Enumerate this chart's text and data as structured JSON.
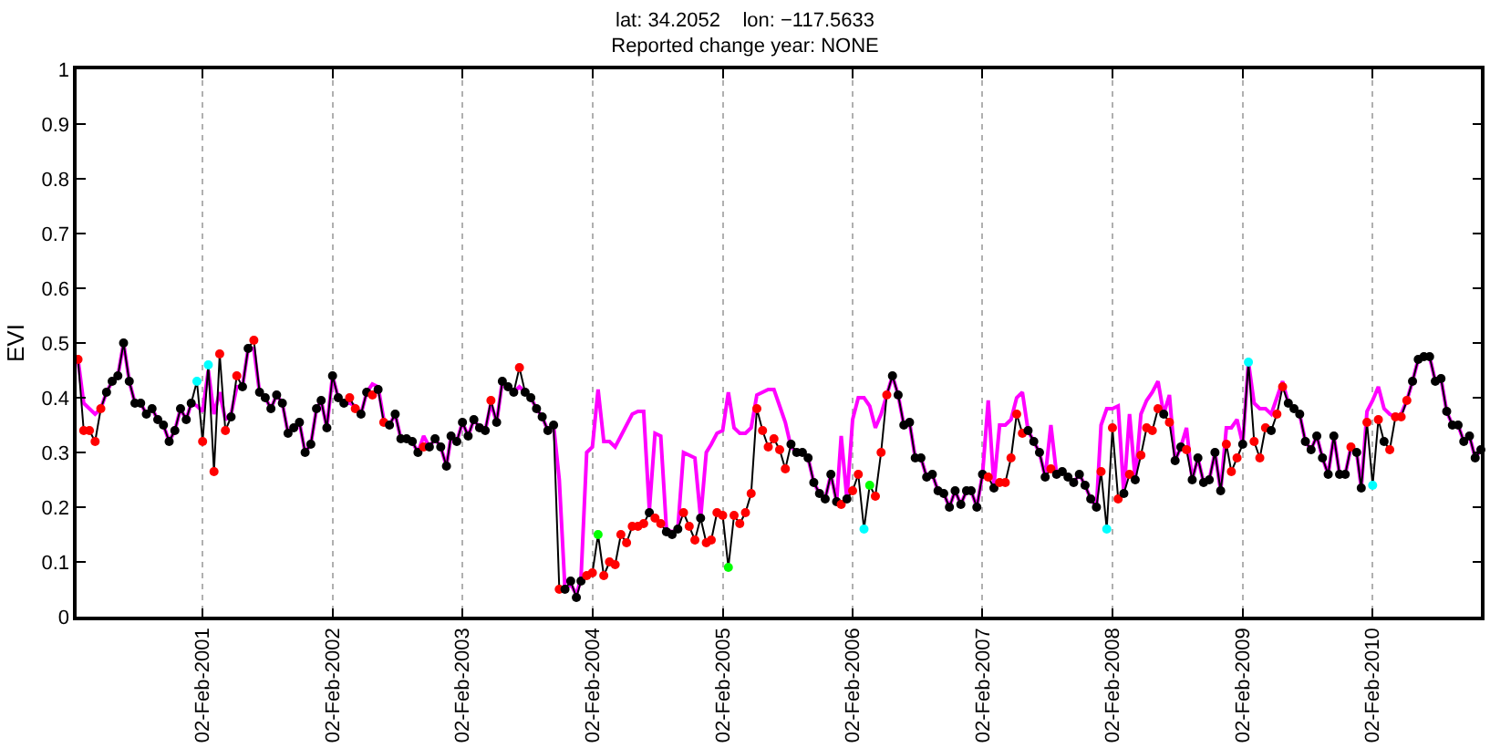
{
  "chart_data": {
    "type": "line",
    "title": "lat: 34.2052    lon: −117.5633\nReported change year: NONE",
    "ylabel": "EVI",
    "xlim": [
      "2000-02-14",
      "2010-12-03"
    ],
    "ylim": [
      0,
      1
    ],
    "yticks": [
      0,
      0.1,
      0.2,
      0.3,
      0.4,
      0.5,
      0.6,
      0.7,
      0.8,
      0.9,
      1
    ],
    "xticks": [
      {
        "value": "2001-02-02",
        "label": "02-Feb-2001"
      },
      {
        "value": "2002-02-02",
        "label": "02-Feb-2002"
      },
      {
        "value": "2003-02-02",
        "label": "02-Feb-2003"
      },
      {
        "value": "2004-02-02",
        "label": "02-Feb-2004"
      },
      {
        "value": "2005-02-02",
        "label": "02-Feb-2005"
      },
      {
        "value": "2006-02-02",
        "label": "02-Feb-2006"
      },
      {
        "value": "2007-02-02",
        "label": "02-Feb-2007"
      },
      {
        "value": "2008-02-02",
        "label": "02-Feb-2008"
      },
      {
        "value": "2009-02-02",
        "label": "02-Feb-2009"
      },
      {
        "value": "2010-02-02",
        "label": "02-Feb-2010"
      }
    ],
    "grid": "x",
    "x": [
      "2000-02-18",
      "2000-03-05",
      "2000-03-21",
      "2000-04-06",
      "2000-04-22",
      "2000-05-08",
      "2000-05-24",
      "2000-06-09",
      "2000-06-25",
      "2000-07-11",
      "2000-07-27",
      "2000-08-12",
      "2000-08-28",
      "2000-09-13",
      "2000-09-29",
      "2000-10-15",
      "2000-10-31",
      "2000-11-16",
      "2000-12-02",
      "2000-12-18",
      "2001-01-01",
      "2001-01-17",
      "2001-02-02",
      "2001-02-18",
      "2001-03-06",
      "2001-03-22",
      "2001-04-07",
      "2001-04-23",
      "2001-05-09",
      "2001-05-25",
      "2001-06-10",
      "2001-06-26",
      "2001-07-12",
      "2001-07-28",
      "2001-08-13",
      "2001-08-29",
      "2001-09-14",
      "2001-09-30",
      "2001-10-16",
      "2001-11-01",
      "2001-11-17",
      "2001-12-03",
      "2001-12-19",
      "2002-01-01",
      "2002-01-17",
      "2002-02-02",
      "2002-02-18",
      "2002-03-06",
      "2002-03-22",
      "2002-04-07",
      "2002-04-23",
      "2002-05-09",
      "2002-05-25",
      "2002-06-10",
      "2002-06-26",
      "2002-07-12",
      "2002-07-28",
      "2002-08-13",
      "2002-08-29",
      "2002-09-14",
      "2002-09-30",
      "2002-10-16",
      "2002-11-01",
      "2002-11-17",
      "2002-12-03",
      "2002-12-19",
      "2003-01-01",
      "2003-01-17",
      "2003-02-02",
      "2003-02-18",
      "2003-03-06",
      "2003-03-22",
      "2003-04-07",
      "2003-04-23",
      "2003-05-09",
      "2003-05-25",
      "2003-06-10",
      "2003-06-26",
      "2003-07-12",
      "2003-07-28",
      "2003-08-13",
      "2003-08-29",
      "2003-09-14",
      "2003-09-30",
      "2003-10-16",
      "2003-11-01",
      "2003-11-17",
      "2003-12-03",
      "2003-12-19",
      "2004-01-01",
      "2004-01-17",
      "2004-02-02",
      "2004-02-18",
      "2004-03-05",
      "2004-03-21",
      "2004-04-06",
      "2004-04-22",
      "2004-05-08",
      "2004-05-24",
      "2004-06-09",
      "2004-06-25",
      "2004-07-11",
      "2004-07-27",
      "2004-08-12",
      "2004-08-28",
      "2004-09-13",
      "2004-09-29",
      "2004-10-15",
      "2004-10-31",
      "2004-11-16",
      "2004-12-02",
      "2004-12-18",
      "2005-01-01",
      "2005-01-17",
      "2005-02-02",
      "2005-02-18",
      "2005-03-06",
      "2005-03-22",
      "2005-04-07",
      "2005-04-23",
      "2005-05-09",
      "2005-05-25",
      "2005-06-10",
      "2005-06-26",
      "2005-07-12",
      "2005-07-28",
      "2005-08-13",
      "2005-08-29",
      "2005-09-14",
      "2005-09-30",
      "2005-10-16",
      "2005-11-01",
      "2005-11-17",
      "2005-12-03",
      "2005-12-19",
      "2006-01-01",
      "2006-01-17",
      "2006-02-02",
      "2006-02-18",
      "2006-03-06",
      "2006-03-22",
      "2006-04-07",
      "2006-04-23",
      "2006-05-09",
      "2006-05-25",
      "2006-06-10",
      "2006-06-26",
      "2006-07-12",
      "2006-07-28",
      "2006-08-13",
      "2006-08-29",
      "2006-09-14",
      "2006-09-30",
      "2006-10-16",
      "2006-11-01",
      "2006-11-17",
      "2006-12-03",
      "2006-12-19",
      "2007-01-01",
      "2007-01-17",
      "2007-02-02",
      "2007-02-18",
      "2007-03-06",
      "2007-03-22",
      "2007-04-07",
      "2007-04-23",
      "2007-05-09",
      "2007-05-25",
      "2007-06-10",
      "2007-06-26",
      "2007-07-12",
      "2007-07-28",
      "2007-08-13",
      "2007-08-29",
      "2007-09-14",
      "2007-09-30",
      "2007-10-16",
      "2007-11-01",
      "2007-11-17",
      "2007-12-03",
      "2007-12-19",
      "2008-01-01",
      "2008-01-17",
      "2008-02-02",
      "2008-02-18",
      "2008-03-05",
      "2008-03-21",
      "2008-04-06",
      "2008-04-22",
      "2008-05-08",
      "2008-05-24",
      "2008-06-09",
      "2008-06-25",
      "2008-07-11",
      "2008-07-27",
      "2008-08-12",
      "2008-08-28",
      "2008-09-13",
      "2008-09-29",
      "2008-10-15",
      "2008-10-31",
      "2008-11-16",
      "2008-12-02",
      "2008-12-18",
      "2009-01-01",
      "2009-01-17",
      "2009-02-02",
      "2009-02-18",
      "2009-03-06",
      "2009-03-22",
      "2009-04-07",
      "2009-04-23",
      "2009-05-09",
      "2009-05-25",
      "2009-06-10",
      "2009-06-26",
      "2009-07-12",
      "2009-07-28",
      "2009-08-13",
      "2009-08-29",
      "2009-09-14",
      "2009-09-30",
      "2009-10-16",
      "2009-11-01",
      "2009-11-17",
      "2009-12-03",
      "2009-12-19",
      "2010-01-01",
      "2010-01-17",
      "2010-02-02",
      "2010-02-18",
      "2010-03-06",
      "2010-03-22",
      "2010-04-07",
      "2010-04-23",
      "2010-05-09",
      "2010-05-25",
      "2010-06-10",
      "2010-06-26",
      "2010-07-12",
      "2010-07-28",
      "2010-08-13",
      "2010-08-29",
      "2010-09-14",
      "2010-09-30",
      "2010-10-16",
      "2010-11-01",
      "2010-11-17",
      "2010-12-03"
    ],
    "series": [
      {
        "color": "#ff00ff",
        "marker": "none",
        "line_style": "solid",
        "values": [
          0.47,
          0.39,
          0.38,
          0.37,
          0.38,
          0.41,
          0.43,
          0.44,
          0.5,
          0.43,
          0.39,
          0.39,
          0.37,
          0.38,
          0.36,
          0.35,
          0.32,
          0.34,
          0.38,
          0.36,
          0.39,
          0.385,
          0.375,
          0.45,
          0.37,
          0.41,
          0.36,
          0.37,
          0.42,
          0.42,
          0.49,
          0.49,
          0.41,
          0.4,
          0.38,
          0.405,
          0.39,
          0.335,
          0.345,
          0.355,
          0.3,
          0.315,
          0.38,
          0.395,
          0.345,
          0.44,
          0.4,
          0.39,
          0.39,
          0.385,
          0.37,
          0.41,
          0.425,
          0.42,
          0.36,
          0.35,
          0.37,
          0.325,
          0.325,
          0.32,
          0.3,
          0.33,
          0.31,
          0.325,
          0.31,
          0.275,
          0.33,
          0.32,
          0.355,
          0.33,
          0.36,
          0.345,
          0.34,
          0.39,
          0.355,
          0.43,
          0.42,
          0.41,
          0.42,
          0.41,
          0.4,
          0.38,
          0.365,
          0.34,
          0.35,
          0.25,
          0.05,
          0.06,
          0.04,
          0.07,
          0.3,
          0.31,
          0.415,
          0.32,
          0.32,
          0.31,
          0.33,
          0.35,
          0.37,
          0.375,
          0.375,
          0.195,
          0.335,
          0.33,
          0.16,
          0.155,
          0.16,
          0.3,
          0.295,
          0.29,
          0.18,
          0.3,
          0.315,
          0.335,
          0.34,
          0.41,
          0.345,
          0.335,
          0.335,
          0.345,
          0.405,
          0.41,
          0.415,
          0.415,
          0.385,
          0.355,
          0.31,
          0.3,
          0.3,
          0.29,
          0.245,
          0.225,
          0.215,
          0.26,
          0.21,
          0.33,
          0.215,
          0.36,
          0.4,
          0.4,
          0.385,
          0.345,
          0.37,
          0.405,
          0.44,
          0.405,
          0.35,
          0.355,
          0.29,
          0.29,
          0.255,
          0.26,
          0.23,
          0.225,
          0.2,
          0.23,
          0.205,
          0.23,
          0.23,
          0.2,
          0.26,
          0.395,
          0.24,
          0.35,
          0.35,
          0.36,
          0.4,
          0.41,
          0.34,
          0.32,
          0.3,
          0.255,
          0.35,
          0.26,
          0.265,
          0.255,
          0.245,
          0.26,
          0.24,
          0.215,
          0.2,
          0.35,
          0.38,
          0.38,
          0.385,
          0.225,
          0.37,
          0.25,
          0.37,
          0.395,
          0.41,
          0.43,
          0.37,
          0.405,
          0.285,
          0.31,
          0.345,
          0.25,
          0.29,
          0.245,
          0.25,
          0.3,
          0.23,
          0.345,
          0.345,
          0.36,
          0.315,
          0.465,
          0.39,
          0.38,
          0.38,
          0.37,
          0.4,
          0.43,
          0.39,
          0.38,
          0.37,
          0.32,
          0.305,
          0.33,
          0.29,
          0.26,
          0.33,
          0.26,
          0.26,
          0.31,
          0.3,
          0.235,
          0.375,
          0.395,
          0.42,
          0.38,
          0.37,
          0.365,
          0.37,
          0.395,
          0.43,
          0.47,
          0.475,
          0.475,
          0.43,
          0.435,
          0.375,
          0.35,
          0.35,
          0.32,
          0.33,
          0.29,
          0.305
        ]
      },
      {
        "color": "#000000",
        "marker": "circle",
        "line_style": "solid",
        "values": [
          0.47,
          0.34,
          0.34,
          0.32,
          0.38,
          0.41,
          0.43,
          0.44,
          0.5,
          0.43,
          0.39,
          0.39,
          0.37,
          0.38,
          0.36,
          0.35,
          0.32,
          0.34,
          0.38,
          0.36,
          0.39,
          0.43,
          0.32,
          0.46,
          0.265,
          0.48,
          0.34,
          0.365,
          0.44,
          0.42,
          0.49,
          0.505,
          0.41,
          0.4,
          0.38,
          0.405,
          0.39,
          0.335,
          0.345,
          0.355,
          0.3,
          0.315,
          0.38,
          0.395,
          0.345,
          0.44,
          0.4,
          0.39,
          0.4,
          0.38,
          0.37,
          0.41,
          0.405,
          0.415,
          0.355,
          0.35,
          0.37,
          0.325,
          0.325,
          0.32,
          0.3,
          0.31,
          0.31,
          0.325,
          0.31,
          0.275,
          0.33,
          0.32,
          0.355,
          0.33,
          0.36,
          0.345,
          0.34,
          0.395,
          0.355,
          0.43,
          0.42,
          0.41,
          0.455,
          0.41,
          0.4,
          0.38,
          0.365,
          0.34,
          0.35,
          0.05,
          0.05,
          0.065,
          0.035,
          0.065,
          0.075,
          0.08,
          0.15,
          0.075,
          0.1,
          0.095,
          0.15,
          0.135,
          0.165,
          0.165,
          0.17,
          0.19,
          0.18,
          0.17,
          0.155,
          0.15,
          0.16,
          0.19,
          0.165,
          0.14,
          0.18,
          0.135,
          0.14,
          0.19,
          0.185,
          0.09,
          0.185,
          0.17,
          0.19,
          0.225,
          0.38,
          0.34,
          0.31,
          0.325,
          0.305,
          0.27,
          0.315,
          0.3,
          0.3,
          0.29,
          0.245,
          0.225,
          0.215,
          0.26,
          0.21,
          0.205,
          0.215,
          0.23,
          0.26,
          0.16,
          0.24,
          0.22,
          0.3,
          0.405,
          0.44,
          0.405,
          0.35,
          0.355,
          0.29,
          0.29,
          0.255,
          0.26,
          0.23,
          0.225,
          0.2,
          0.23,
          0.205,
          0.23,
          0.23,
          0.2,
          0.26,
          0.255,
          0.235,
          0.245,
          0.245,
          0.29,
          0.37,
          0.335,
          0.34,
          0.32,
          0.3,
          0.255,
          0.27,
          0.26,
          0.265,
          0.255,
          0.245,
          0.26,
          0.24,
          0.215,
          0.2,
          0.265,
          0.16,
          0.345,
          0.215,
          0.225,
          0.26,
          0.25,
          0.295,
          0.345,
          0.34,
          0.38,
          0.37,
          0.355,
          0.285,
          0.31,
          0.305,
          0.25,
          0.29,
          0.245,
          0.25,
          0.3,
          0.23,
          0.315,
          0.265,
          0.29,
          0.315,
          0.465,
          0.32,
          0.29,
          0.345,
          0.34,
          0.37,
          0.42,
          0.39,
          0.38,
          0.37,
          0.32,
          0.305,
          0.33,
          0.29,
          0.26,
          0.33,
          0.26,
          0.26,
          0.31,
          0.3,
          0.235,
          0.355,
          0.24,
          0.36,
          0.32,
          0.305,
          0.365,
          0.365,
          0.395,
          0.43,
          0.47,
          0.475,
          0.475,
          0.43,
          0.435,
          0.375,
          0.35,
          0.35,
          0.32,
          0.33,
          0.29,
          0.305
        ],
        "colors": [
          "#ff0000",
          "#ff0000",
          "#ff0000",
          "#ff0000",
          "#ff0000",
          "#000000",
          "#000000",
          "#000000",
          "#000000",
          "#000000",
          "#000000",
          "#000000",
          "#000000",
          "#000000",
          "#000000",
          "#000000",
          "#000000",
          "#000000",
          "#000000",
          "#000000",
          "#000000",
          "#00ffff",
          "#ff0000",
          "#00ffff",
          "#ff0000",
          "#ff0000",
          "#ff0000",
          "#000000",
          "#ff0000",
          "#000000",
          "#000000",
          "#ff0000",
          "#000000",
          "#000000",
          "#000000",
          "#000000",
          "#000000",
          "#000000",
          "#000000",
          "#000000",
          "#000000",
          "#000000",
          "#000000",
          "#000000",
          "#000000",
          "#000000",
          "#000000",
          "#000000",
          "#ff0000",
          "#ff0000",
          "#000000",
          "#000000",
          "#ff0000",
          "#000000",
          "#ff0000",
          "#000000",
          "#000000",
          "#000000",
          "#000000",
          "#000000",
          "#000000",
          "#ff0000",
          "#000000",
          "#000000",
          "#000000",
          "#000000",
          "#000000",
          "#000000",
          "#000000",
          "#000000",
          "#000000",
          "#000000",
          "#000000",
          "#ff0000",
          "#000000",
          "#000000",
          "#000000",
          "#000000",
          "#ff0000",
          "#000000",
          "#000000",
          "#000000",
          "#000000",
          "#000000",
          "#000000",
          "#ff0000",
          "#000000",
          "#000000",
          "#000000",
          "#000000",
          "#ff0000",
          "#ff0000",
          "#00ff00",
          "#ff0000",
          "#ff0000",
          "#ff0000",
          "#ff0000",
          "#ff0000",
          "#ff0000",
          "#ff0000",
          "#ff0000",
          "#000000",
          "#ff0000",
          "#ff0000",
          "#000000",
          "#000000",
          "#000000",
          "#ff0000",
          "#ff0000",
          "#ff0000",
          "#000000",
          "#ff0000",
          "#ff0000",
          "#ff0000",
          "#ff0000",
          "#00ff00",
          "#ff0000",
          "#ff0000",
          "#ff0000",
          "#ff0000",
          "#ff0000",
          "#ff0000",
          "#ff0000",
          "#ff0000",
          "#ff0000",
          "#ff0000",
          "#000000",
          "#000000",
          "#000000",
          "#000000",
          "#000000",
          "#000000",
          "#000000",
          "#000000",
          "#000000",
          "#ff0000",
          "#000000",
          "#ff0000",
          "#ff0000",
          "#00ffff",
          "#00ff00",
          "#ff0000",
          "#ff0000",
          "#ff0000",
          "#000000",
          "#000000",
          "#000000",
          "#000000",
          "#000000",
          "#000000",
          "#000000",
          "#000000",
          "#000000",
          "#000000",
          "#000000",
          "#000000",
          "#000000",
          "#000000",
          "#000000",
          "#000000",
          "#000000",
          "#ff0000",
          "#000000",
          "#ff0000",
          "#ff0000",
          "#ff0000",
          "#ff0000",
          "#ff0000",
          "#000000",
          "#000000",
          "#000000",
          "#000000",
          "#ff0000",
          "#000000",
          "#000000",
          "#000000",
          "#000000",
          "#000000",
          "#000000",
          "#000000",
          "#000000",
          "#ff0000",
          "#00ffff",
          "#ff0000",
          "#ff0000",
          "#000000",
          "#ff0000",
          "#000000",
          "#ff0000",
          "#ff0000",
          "#ff0000",
          "#ff0000",
          "#000000",
          "#ff0000",
          "#000000",
          "#000000",
          "#ff0000",
          "#000000",
          "#000000",
          "#000000",
          "#000000",
          "#000000",
          "#000000",
          "#ff0000",
          "#ff0000",
          "#ff0000",
          "#000000",
          "#00ffff",
          "#ff0000",
          "#ff0000",
          "#ff0000",
          "#000000",
          "#ff0000",
          "#ff0000",
          "#000000",
          "#000000",
          "#000000",
          "#000000",
          "#000000",
          "#000000",
          "#000000",
          "#000000",
          "#000000",
          "#000000",
          "#000000",
          "#ff0000",
          "#000000",
          "#000000",
          "#ff0000",
          "#00ffff",
          "#ff0000",
          "#000000",
          "#ff0000",
          "#ff0000",
          "#ff0000",
          "#ff0000",
          "#000000",
          "#000000",
          "#000000",
          "#000000",
          "#000000",
          "#000000",
          "#000000",
          "#000000",
          "#000000",
          "#000000",
          "#000000",
          "#000000",
          "#000000"
        ]
      }
    ]
  }
}
